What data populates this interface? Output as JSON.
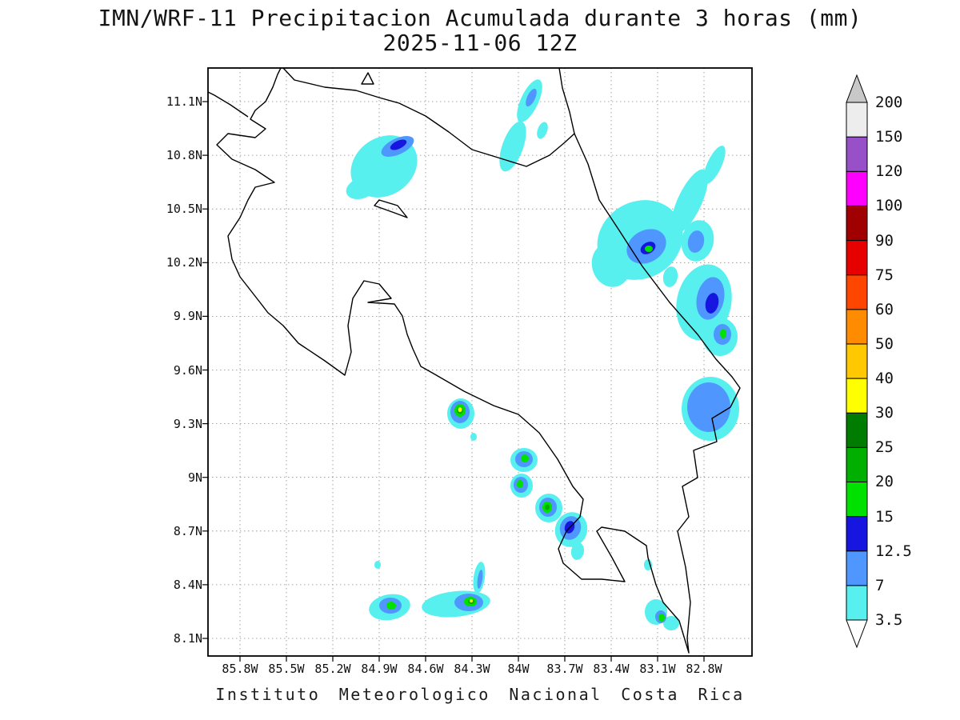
{
  "title": {
    "line1": "IMN/WRF-11 Precipitacion Acumulada durante 3 horas (mm)",
    "line2": "2025-11-06 12Z"
  },
  "caption": "Instituto Meteorologico Nacional Costa Rica",
  "axes": {
    "y_labels": [
      "11.1N",
      "10.8N",
      "10.5N",
      "10.2N",
      "9.9N",
      "9.6N",
      "9.3N",
      "9N",
      "8.7N",
      "8.4N",
      "8.1N"
    ],
    "x_labels": [
      "85.8W",
      "85.5W",
      "85.2W",
      "84.9W",
      "84.6W",
      "84.3W",
      "84W",
      "83.7W",
      "83.4W",
      "83.1W",
      "82.8W"
    ]
  },
  "colorbar": {
    "levels": [
      "3.5",
      "7",
      "12.5",
      "15",
      "20",
      "25",
      "30",
      "40",
      "50",
      "60",
      "75",
      "90",
      "100",
      "120",
      "150",
      "200"
    ],
    "segment_colors": [
      "#58EFEF",
      "#4F97FF",
      "#1616E0",
      "#00E100",
      "#00AF00",
      "#007D00",
      "#FFFF00",
      "#FFC800",
      "#FF8C00",
      "#FF4600",
      "#E60000",
      "#A00000",
      "#FF00FF",
      "#9850C8",
      "#EDEDED"
    ],
    "above_color": "#C8C8C8",
    "below_color": "#FFFFFF"
  },
  "palette": {
    "3.5": "#58EFEF",
    "7": "#4F97FF",
    "12.5": "#1616E0",
    "15": "#00E100",
    "20": "#00AF00",
    "25": "#007D00",
    "30": "#FFFF00"
  },
  "map": {
    "outline_paths": [
      "M354,85 L368,100 L406,109 L445,113 L474,122 L499,129 L532,145 L561,165 L590,187 L629,199 L658,208 L687,194 L706,178 L718,167 L735,205 L749,250 L774,288 L803,333 L837,378 L872,418 L895,449 L915,471 L925,485 L913,509 L890,523 L896,552 L867,563 L872,597 L853,608 L861,646 L847,664 L857,709 L863,753 L859,798 L861,816 L849,776 L829,753 L820,731 L810,697 L808,682 L781,664 L752,659 L746,664 L765,697 L781,727 L752,724 L727,724 L704,704 L698,686 L708,664 L725,646 L729,624 L716,608 L697,574 L674,541 L648,518 L617,507 L580,489 L542,467 L526,458 L516,436 L509,418 L503,395 L493,380 L460,378 L489,373 L474,355 L455,351 L441,373 L435,407 L439,440 L431,469 L406,451 L373,429 L354,407 L335,391 L325,378 L300,346 L290,324 L285,295 L300,272 L310,250 L319,234 L343,228 L319,212 L290,199 L271,181 L285,167 L319,172 L332,161 L313,149 L319,138 L332,127 L341,109 L347,93 L351,85",
      "M718,167 L712,140 L703,110 L699,85",
      "M310,146 L288,131 L268,119 L260,115",
      "M452,105 L460,91 L467,105 Z",
      "M468,257 L493,266 L509,272 L497,257 L474,250 Z"
    ],
    "cells_format": [
      "level",
      "cx",
      "cy",
      "rx",
      "ry",
      "rotation_deg"
    ],
    "cells": [
      [
        "3.5",
        480,
        208,
        44,
        36,
        -35
      ],
      [
        "3.5",
        452,
        235,
        20,
        13,
        -20
      ],
      [
        "3.5",
        641,
        183,
        13,
        33,
        20
      ],
      [
        "3.5",
        662,
        126,
        11,
        29,
        25
      ],
      [
        "3.5",
        678,
        163,
        6,
        11,
        20
      ],
      [
        "3.5",
        800,
        300,
        55,
        48,
        -30
      ],
      [
        "3.5",
        764,
        331,
        24,
        28,
        -15
      ],
      [
        "3.5",
        862,
        252,
        15,
        44,
        25
      ],
      [
        "3.5",
        893,
        206,
        9,
        26,
        25
      ],
      [
        "3.5",
        872,
        301,
        20,
        26,
        12
      ],
      [
        "3.5",
        880,
        378,
        34,
        48,
        12
      ],
      [
        "3.5",
        900,
        421,
        22,
        24,
        0
      ],
      [
        "3.5",
        838,
        346,
        9,
        13,
        10
      ],
      [
        "3.5",
        888,
        511,
        36,
        40,
        0
      ],
      [
        "3.5",
        576,
        517,
        17,
        19,
        0
      ],
      [
        "3.5",
        592,
        546,
        4,
        5,
        0
      ],
      [
        "3.5",
        655,
        575,
        17,
        15,
        0
      ],
      [
        "3.5",
        652,
        607,
        14,
        15,
        0
      ],
      [
        "3.5",
        686,
        635,
        17,
        18,
        0
      ],
      [
        "3.5",
        714,
        662,
        20,
        22,
        20
      ],
      [
        "3.5",
        722,
        689,
        8,
        11,
        10
      ],
      [
        "3.5",
        487,
        759,
        26,
        16,
        -10
      ],
      [
        "3.5",
        570,
        755,
        43,
        16,
        -6
      ],
      [
        "3.5",
        599,
        722,
        7,
        20,
        8
      ],
      [
        "3.5",
        820,
        765,
        14,
        16,
        0
      ],
      [
        "3.5",
        839,
        779,
        10,
        9,
        0
      ],
      [
        "3.5",
        810,
        706,
        5,
        7,
        0
      ],
      [
        "3.5",
        472,
        706,
        4,
        5,
        0
      ],
      [
        "7",
        497,
        183,
        22,
        10,
        -25
      ],
      [
        "7",
        664,
        122,
        5,
        12,
        25
      ],
      [
        "7",
        808,
        308,
        26,
        20,
        -30
      ],
      [
        "7",
        870,
        302,
        10,
        14,
        12
      ],
      [
        "7",
        888,
        373,
        17,
        27,
        12
      ],
      [
        "7",
        903,
        418,
        11,
        13,
        0
      ],
      [
        "7",
        886,
        509,
        27,
        31,
        0
      ],
      [
        "7",
        575,
        515,
        12,
        14,
        0
      ],
      [
        "7",
        655,
        574,
        11,
        10,
        0
      ],
      [
        "7",
        651,
        606,
        9,
        10,
        0
      ],
      [
        "7",
        685,
        634,
        11,
        12,
        0
      ],
      [
        "7",
        713,
        660,
        13,
        15,
        20
      ],
      [
        "7",
        488,
        757,
        14,
        10,
        0
      ],
      [
        "7",
        586,
        753,
        18,
        11,
        0
      ],
      [
        "7",
        600,
        724,
        3,
        12,
        8
      ],
      [
        "7",
        826,
        771,
        7,
        8,
        0
      ],
      [
        "12.5",
        498,
        181,
        11,
        5,
        -25
      ],
      [
        "12.5",
        810,
        310,
        10,
        7,
        -30
      ],
      [
        "12.5",
        890,
        379,
        8,
        13,
        12
      ],
      [
        "12.5",
        712,
        659,
        6,
        8,
        20
      ],
      [
        "15",
        811,
        311,
        5,
        4,
        0
      ],
      [
        "15",
        904,
        417,
        4,
        6,
        0
      ],
      [
        "15",
        575,
        513,
        7,
        8,
        0
      ],
      [
        "15",
        656,
        573,
        5,
        5,
        0
      ],
      [
        "15",
        650,
        605,
        4,
        5,
        0
      ],
      [
        "15",
        684,
        634,
        6,
        7,
        0
      ],
      [
        "15",
        489,
        757,
        6,
        5,
        0
      ],
      [
        "15",
        588,
        752,
        8,
        6,
        0
      ],
      [
        "15",
        827,
        772,
        4,
        5,
        0
      ],
      [
        "20",
        684,
        634,
        3,
        3.5,
        0
      ],
      [
        "20",
        575,
        513,
        4,
        4.5,
        0
      ],
      [
        "20",
        589,
        752,
        4,
        3,
        0
      ],
      [
        "30",
        575,
        512,
        2.5,
        3,
        0
      ],
      [
        "30",
        589,
        751,
        2,
        2,
        0
      ]
    ]
  }
}
